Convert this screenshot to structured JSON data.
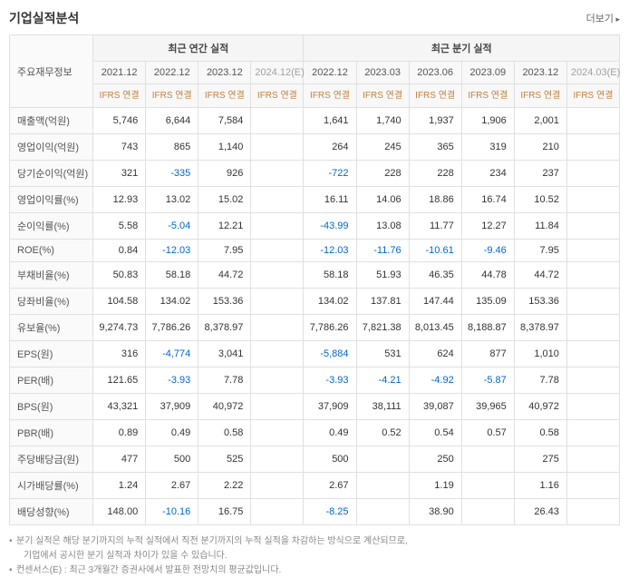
{
  "title": "기업실적분석",
  "more_label": "더보기",
  "group_headers": {
    "annual": "최근 연간 실적",
    "quarterly": "최근 분기 실적"
  },
  "row_header_label": "주요재무정보",
  "ifrs_label": "IFRS\n연결",
  "periods_annual": [
    "2021.12",
    "2022.12",
    "2023.12",
    "2024.12(E)"
  ],
  "periods_quarterly": [
    "2022.12",
    "2023.03",
    "2023.06",
    "2023.09",
    "2023.12",
    "2024.03(E)"
  ],
  "rows": [
    {
      "label": "매출액(억원)",
      "annual": [
        "5,746",
        "6,644",
        "7,584",
        ""
      ],
      "quarterly": [
        "1,641",
        "1,740",
        "1,937",
        "1,906",
        "2,001",
        ""
      ]
    },
    {
      "label": "영업이익(억원)",
      "annual": [
        "743",
        "865",
        "1,140",
        ""
      ],
      "quarterly": [
        "264",
        "245",
        "365",
        "319",
        "210",
        ""
      ]
    },
    {
      "label": "당기순이익(억원)",
      "annual": [
        "321",
        "-335",
        "926",
        ""
      ],
      "quarterly": [
        "-722",
        "228",
        "228",
        "234",
        "237",
        ""
      ]
    },
    {
      "label": "영업이익률(%)",
      "annual": [
        "12.93",
        "13.02",
        "15.02",
        ""
      ],
      "quarterly": [
        "16.11",
        "14.06",
        "18.86",
        "16.74",
        "10.52",
        ""
      ]
    },
    {
      "label": "순이익률(%)",
      "annual": [
        "5.58",
        "-5.04",
        "12.21",
        ""
      ],
      "quarterly": [
        "-43.99",
        "13.08",
        "11.77",
        "12.27",
        "11.84",
        ""
      ]
    },
    {
      "label": "ROE(%)",
      "annual": [
        "0.84",
        "-12.03",
        "7.95",
        ""
      ],
      "quarterly": [
        "-12.03",
        "-11.76",
        "-10.61",
        "-9.46",
        "7.95",
        ""
      ]
    },
    {
      "label": "부채비율(%)",
      "annual": [
        "50.83",
        "58.18",
        "44.72",
        ""
      ],
      "quarterly": [
        "58.18",
        "51.93",
        "46.35",
        "44.78",
        "44.72",
        ""
      ]
    },
    {
      "label": "당좌비율(%)",
      "annual": [
        "104.58",
        "134.02",
        "153.36",
        ""
      ],
      "quarterly": [
        "134.02",
        "137.81",
        "147.44",
        "135.09",
        "153.36",
        ""
      ]
    },
    {
      "label": "유보율(%)",
      "annual": [
        "9,274.73",
        "7,786.26",
        "8,378.97",
        ""
      ],
      "quarterly": [
        "7,786.26",
        "7,821.38",
        "8,013.45",
        "8,188.87",
        "8,378.97",
        ""
      ]
    },
    {
      "label": "EPS(원)",
      "annual": [
        "316",
        "-4,774",
        "3,041",
        ""
      ],
      "quarterly": [
        "-5,884",
        "531",
        "624",
        "877",
        "1,010",
        ""
      ]
    },
    {
      "label": "PER(배)",
      "annual": [
        "121.65",
        "-3.93",
        "7.78",
        ""
      ],
      "quarterly": [
        "-3.93",
        "-4.21",
        "-4.92",
        "-5.87",
        "7.78",
        ""
      ]
    },
    {
      "label": "BPS(원)",
      "annual": [
        "43,321",
        "37,909",
        "40,972",
        ""
      ],
      "quarterly": [
        "37,909",
        "38,111",
        "39,087",
        "39,965",
        "40,972",
        ""
      ]
    },
    {
      "label": "PBR(배)",
      "annual": [
        "0.89",
        "0.49",
        "0.58",
        ""
      ],
      "quarterly": [
        "0.49",
        "0.52",
        "0.54",
        "0.57",
        "0.58",
        ""
      ]
    },
    {
      "label": "주당배당금(원)",
      "annual": [
        "477",
        "500",
        "525",
        ""
      ],
      "quarterly": [
        "500",
        "",
        "250",
        "",
        "275",
        ""
      ]
    },
    {
      "label": "시가배당률(%)",
      "annual": [
        "1.24",
        "2.67",
        "2.22",
        ""
      ],
      "quarterly": [
        "2.67",
        "",
        "1.19",
        "",
        "1.16",
        ""
      ]
    },
    {
      "label": "배당성향(%)",
      "annual": [
        "148.00",
        "-10.16",
        "16.75",
        ""
      ],
      "quarterly": [
        "-8.25",
        "",
        "38.90",
        "",
        "26.43",
        ""
      ]
    }
  ],
  "footnotes": [
    "분기 실적은 해당 분기까지의 누적 실적에서 직전 분기까지의 누적 실적을 차감하는 방식으로 계산되므로,",
    "기업에서 공시한 분기 실적과 차이가 있을 수 있습니다.",
    "컨센서스(E) : 최근 3개월간 증권사에서 발표한 전망치의 평균값입니다."
  ],
  "colors": {
    "negative": "#0066cc",
    "ifrs_text": "#c08040",
    "border": "#e0e0e0",
    "header_bg": "#f8f8f8"
  }
}
